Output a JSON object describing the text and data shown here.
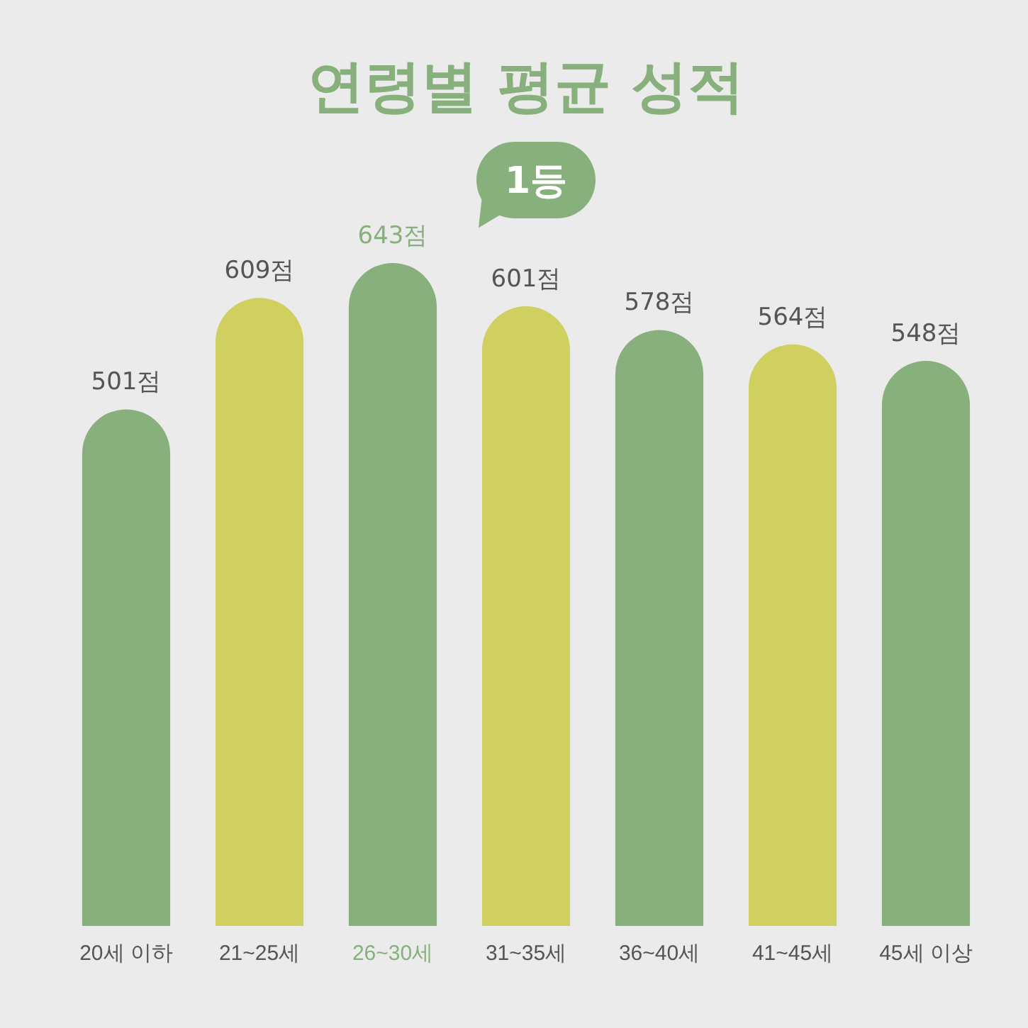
{
  "chart_data": {
    "type": "bar",
    "title": "연령별 평균 성적",
    "categories": [
      "20세 이하",
      "21~25세",
      "26~30세",
      "31~35세",
      "36~40세",
      "41~45세",
      "45세 이상"
    ],
    "values": [
      501,
      609,
      643,
      601,
      578,
      564,
      548
    ],
    "colors": [
      "#88b07c",
      "#cfd060",
      "#88b07c",
      "#cfd060",
      "#88b07c",
      "#cfd060",
      "#88b07c"
    ],
    "value_labels": [
      "501점",
      "609점",
      "643점",
      "601점",
      "578점",
      "564점",
      "548점"
    ],
    "annotations": [
      "1등"
    ],
    "grid": false,
    "legend": false
  }
}
